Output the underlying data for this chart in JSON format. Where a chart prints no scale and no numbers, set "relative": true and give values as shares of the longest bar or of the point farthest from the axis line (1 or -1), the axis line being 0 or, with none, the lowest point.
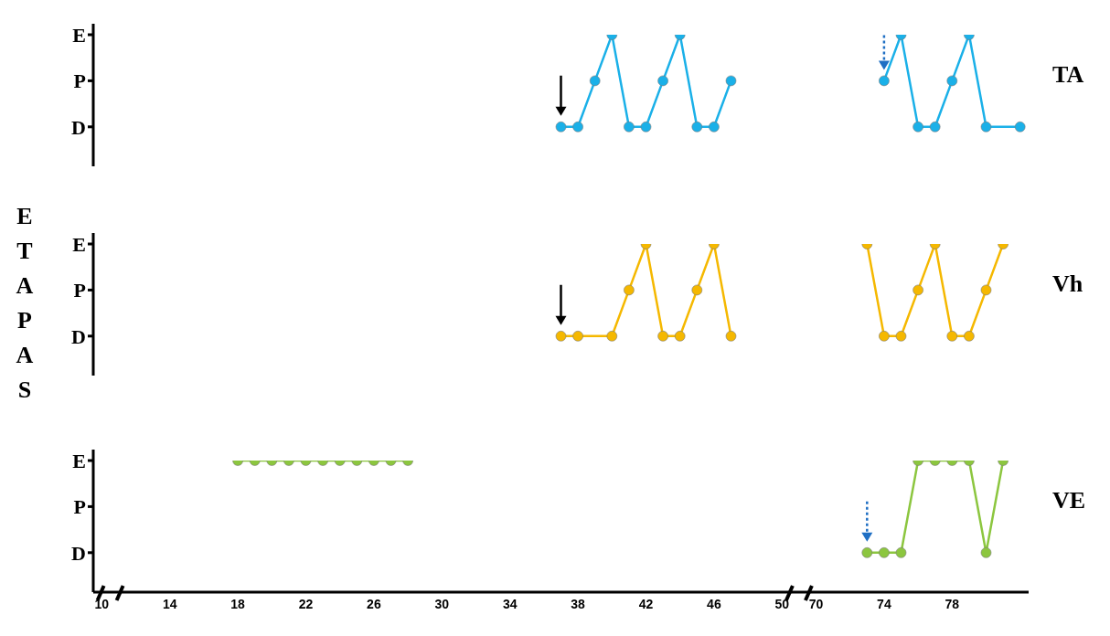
{
  "chart_data": [
    {
      "type": "line",
      "relative": true,
      "annotations": [
        "E",
        "P",
        "D"
      ],
      "categories": [
        "10",
        null,
        null,
        null,
        "14",
        null,
        null,
        null,
        "18",
        null,
        null,
        null,
        "22",
        null,
        null,
        null,
        "26",
        null,
        null,
        null,
        "30",
        null,
        null,
        null,
        "34",
        null,
        null,
        null,
        "38",
        null,
        null,
        null,
        "42",
        null,
        null,
        null,
        "46",
        null,
        null,
        null,
        "50",
        null,
        "70",
        null,
        null,
        null,
        "74",
        null,
        null,
        null,
        "78",
        null,
        null,
        null,
        null
      ],
      "tick_labels": "y",
      "marker": "circle",
      "line_style": "solid",
      "series": [
        {
          "color": "#1ab0e8",
          "values": [
            null,
            null,
            null,
            null,
            null,
            null,
            null,
            null,
            null,
            null,
            null,
            null,
            null,
            null,
            null,
            null,
            null,
            null,
            null,
            null,
            null,
            null,
            null,
            null,
            null,
            null,
            null,
            0.3,
            0.3,
            0.65,
            1,
            0.3,
            0.3,
            0.65,
            1,
            0.3,
            0.3,
            0.65,
            null,
            null,
            null,
            null,
            null,
            null,
            null,
            null,
            null,
            null,
            null,
            null,
            null,
            null,
            null,
            null,
            null
          ]
        },
        {
          "name": "TA",
          "color": "#1ab0e8",
          "values": [
            null,
            null,
            null,
            null,
            null,
            null,
            null,
            null,
            null,
            null,
            null,
            null,
            null,
            null,
            null,
            null,
            null,
            null,
            null,
            null,
            null,
            null,
            null,
            null,
            null,
            null,
            null,
            null,
            null,
            null,
            null,
            null,
            null,
            null,
            null,
            null,
            null,
            null,
            null,
            null,
            null,
            null,
            null,
            null,
            null,
            null,
            0.65,
            1,
            0.3,
            0.3,
            0.65,
            1,
            0.3,
            null,
            0.3
          ]
        }
      ]
    },
    {
      "type": "line",
      "ylabel": "ETAPAS",
      "relative": true,
      "annotations": [
        "E",
        "P",
        "D"
      ],
      "categories": [
        "10",
        null,
        null,
        null,
        "14",
        null,
        null,
        null,
        "18",
        null,
        null,
        null,
        "22",
        null,
        null,
        null,
        "26",
        null,
        null,
        null,
        "30",
        null,
        null,
        null,
        "34",
        null,
        null,
        null,
        "38",
        null,
        null,
        null,
        "42",
        null,
        null,
        null,
        "46",
        null,
        null,
        null,
        "50",
        null,
        "70",
        null,
        null,
        null,
        "74",
        null,
        null,
        null,
        "78",
        null,
        null,
        null,
        null
      ],
      "tick_labels": "y",
      "marker": "circle",
      "line_style": "solid",
      "series": [
        {
          "color": "#f5b800",
          "values": [
            null,
            null,
            null,
            null,
            null,
            null,
            null,
            null,
            null,
            null,
            null,
            null,
            null,
            null,
            null,
            null,
            null,
            null,
            null,
            null,
            null,
            null,
            null,
            null,
            null,
            null,
            null,
            0.3,
            0.3,
            null,
            0.3,
            0.65,
            1,
            0.3,
            0.3,
            0.65,
            1,
            0.3,
            null,
            null,
            null,
            null,
            null,
            null,
            null,
            null,
            null,
            null,
            null,
            null,
            null,
            null,
            null,
            null,
            null
          ]
        },
        {
          "name": "Vh",
          "color": "#f5b800",
          "values": [
            null,
            null,
            null,
            null,
            null,
            null,
            null,
            null,
            null,
            null,
            null,
            null,
            null,
            null,
            null,
            null,
            null,
            null,
            null,
            null,
            null,
            null,
            null,
            null,
            null,
            null,
            null,
            null,
            null,
            null,
            null,
            null,
            null,
            null,
            null,
            null,
            null,
            null,
            null,
            null,
            null,
            null,
            null,
            null,
            null,
            1,
            0.3,
            0.3,
            0.65,
            1,
            0.3,
            0.3,
            0.65,
            1,
            null
          ]
        }
      ]
    },
    {
      "type": "line",
      "relative": true,
      "annotations": [
        "E",
        "P",
        "D"
      ],
      "categories": [
        "10",
        null,
        null,
        null,
        "14",
        null,
        null,
        null,
        "18",
        null,
        null,
        null,
        "22",
        null,
        null,
        null,
        "26",
        null,
        null,
        null,
        "30",
        null,
        null,
        null,
        "34",
        null,
        null,
        null,
        "38",
        null,
        null,
        null,
        "42",
        null,
        null,
        null,
        "46",
        null,
        null,
        null,
        "50",
        null,
        "70",
        null,
        null,
        null,
        "74",
        null,
        null,
        null,
        "78",
        null,
        null,
        null,
        null
      ],
      "marker": "circle",
      "line_style": "solid",
      "series": [
        {
          "color": "#8cc63f",
          "values": [
            null,
            null,
            null,
            null,
            null,
            null,
            null,
            null,
            1,
            1,
            1,
            1,
            1,
            1,
            1,
            1,
            1,
            1,
            1,
            null,
            null,
            null,
            null,
            null,
            null,
            null,
            null,
            null,
            null,
            null,
            null,
            null,
            null,
            null,
            null,
            null,
            null,
            null,
            null,
            null,
            null,
            null,
            null,
            null,
            null,
            null,
            null,
            null,
            null,
            null,
            null,
            null,
            null,
            null,
            null
          ]
        },
        {
          "name": "VE",
          "color": "#8cc63f",
          "values": [
            null,
            null,
            null,
            null,
            null,
            null,
            null,
            null,
            null,
            null,
            null,
            null,
            null,
            null,
            null,
            null,
            null,
            null,
            null,
            null,
            null,
            null,
            null,
            null,
            null,
            null,
            null,
            null,
            null,
            null,
            null,
            null,
            null,
            null,
            null,
            null,
            null,
            null,
            null,
            null,
            null,
            null,
            null,
            null,
            null,
            0.3,
            0.3,
            0.3,
            1,
            1,
            1,
            1,
            0.3,
            1,
            null
          ]
        }
      ]
    }
  ]
}
